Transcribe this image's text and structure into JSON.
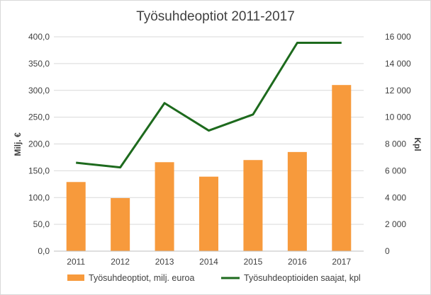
{
  "chart_data": {
    "type": "bar",
    "title": "Työsuhdeoptiot 2011-2017",
    "categories": [
      "2011",
      "2012",
      "2013",
      "2014",
      "2015",
      "2016",
      "2017"
    ],
    "series": [
      {
        "name": "Työsuhdeoptiot, milj. euroa",
        "type": "bar",
        "axis": "left",
        "color": "#f79a3c",
        "values": [
          129,
          99,
          166,
          139,
          170,
          185,
          310
        ]
      },
      {
        "name": "Työsuhdeoptioiden saajat, kpl",
        "type": "line",
        "axis": "right",
        "color": "#1d6a1d",
        "values": [
          6600,
          6250,
          11050,
          9000,
          10200,
          15550,
          15550
        ]
      }
    ],
    "ylabel": "Milj. €",
    "y2label": "Kpl",
    "ylim": [
      0,
      400
    ],
    "y2lim": [
      0,
      16000
    ],
    "yticks": [
      "0,0",
      "50,0",
      "100,0",
      "150,0",
      "200,0",
      "250,0",
      "300,0",
      "350,0",
      "400,0"
    ],
    "y2ticks": [
      "0",
      "2 000",
      "4 000",
      "6 000",
      "8 000",
      "10 000",
      "12 000",
      "14 000",
      "16 000"
    ],
    "grid": true,
    "legend": "bottom"
  }
}
